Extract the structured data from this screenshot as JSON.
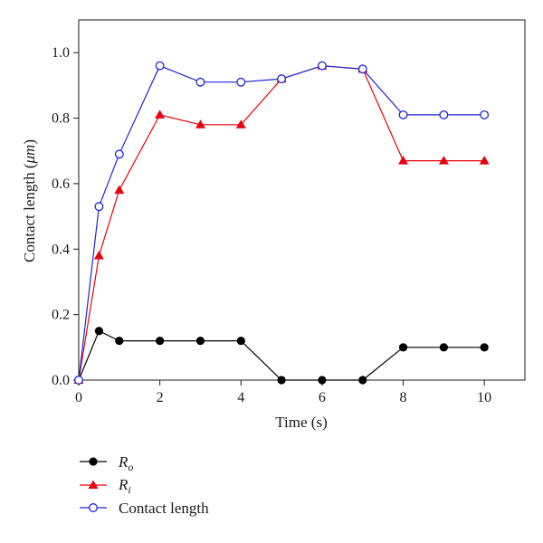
{
  "chart_data": {
    "type": "line",
    "xlabel": "Time (s)",
    "ylabel_prefix": "Contact length (",
    "ylabel_unit": "μm",
    "ylabel_suffix": ")",
    "xlim": [
      0,
      11
    ],
    "ylim": [
      0,
      1.1
    ],
    "xticks": [
      0,
      2,
      4,
      6,
      8,
      10
    ],
    "yticks": [
      0.0,
      0.2,
      0.4,
      0.6,
      0.8,
      1.0
    ],
    "ytick_labels": [
      "0.0",
      "0.2",
      "0.4",
      "0.6",
      "0.8",
      "1.0"
    ],
    "grid": false,
    "legend_position": "below-left",
    "series": [
      {
        "name_main": "R",
        "name_sub": "o",
        "color": "#000000",
        "marker": "filled-circle",
        "x": [
          0,
          0.5,
          1,
          2,
          3,
          4,
          5,
          6,
          7,
          8,
          9,
          10
        ],
        "y": [
          0.0,
          0.15,
          0.12,
          0.12,
          0.12,
          0.12,
          0.0,
          0.0,
          0.0,
          0.1,
          0.1,
          0.1
        ]
      },
      {
        "name_main": "R",
        "name_sub": "i",
        "color": "#e8000b",
        "marker": "filled-triangle",
        "x": [
          0,
          0.5,
          1,
          2,
          3,
          4,
          5,
          6,
          7,
          8,
          9,
          10
        ],
        "y": [
          0.0,
          0.38,
          0.58,
          0.81,
          0.78,
          0.78,
          0.92,
          0.96,
          0.95,
          0.67,
          0.67,
          0.67
        ]
      },
      {
        "name_main": "Contact length",
        "name_sub": "",
        "color": "#1f24d6",
        "marker": "open-circle",
        "x": [
          0,
          0.5,
          1,
          2,
          3,
          4,
          5,
          6,
          7,
          8,
          9,
          10
        ],
        "y": [
          0.0,
          0.53,
          0.69,
          0.96,
          0.91,
          0.91,
          0.92,
          0.96,
          0.95,
          0.81,
          0.81,
          0.81
        ]
      }
    ]
  }
}
